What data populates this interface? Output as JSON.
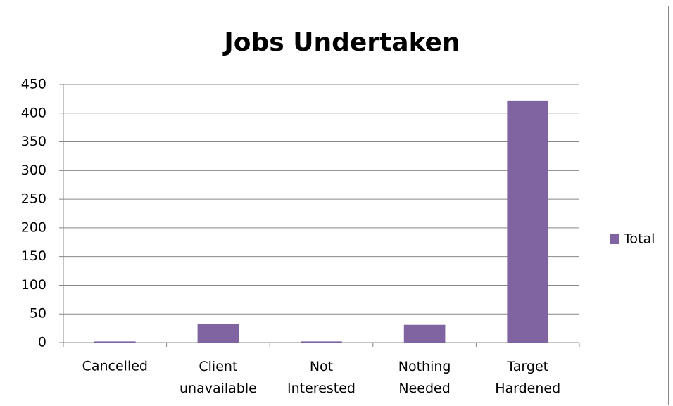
{
  "chart_data": {
    "type": "bar",
    "title": "Jobs Undertaken",
    "categories": [
      "Cancelled",
      "Client unavailable",
      "Not Interested",
      "Nothing Needed",
      "Target Hardened"
    ],
    "series": [
      {
        "name": "Total",
        "color": "#8064a2",
        "values": [
          2,
          32,
          2,
          31,
          422
        ]
      }
    ],
    "ylim": [
      0,
      450
    ],
    "yticks": [
      0,
      50,
      100,
      150,
      200,
      250,
      300,
      350,
      400,
      450
    ],
    "grid": true,
    "legend": "right"
  }
}
